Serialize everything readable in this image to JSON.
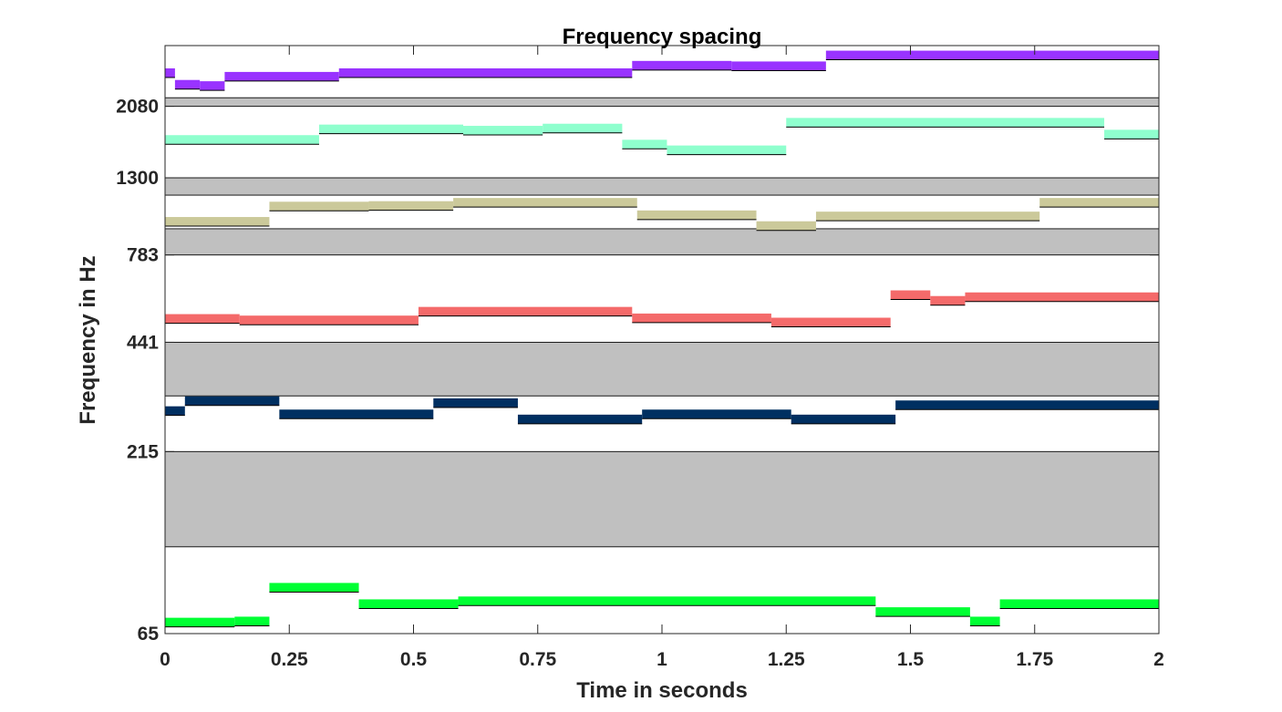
{
  "chart_data": {
    "type": "bar",
    "title": "Frequency spacing",
    "xlabel": "Time in seconds",
    "ylabel": "Frequency in Hz",
    "xlim": [
      0,
      2
    ],
    "ylim": [
      65,
      3100
    ],
    "yscale": "log",
    "grid": false,
    "x_ticks": [
      "0",
      "0.25",
      "0.5",
      "0.75",
      "1",
      "1.25",
      "1.5",
      "1.75",
      "2"
    ],
    "y_ticks": [
      {
        "value": 65,
        "label": "65"
      },
      {
        "value": 215,
        "label": "215"
      },
      {
        "value": 441,
        "label": "441"
      },
      {
        "value": 783,
        "label": "783"
      },
      {
        "value": 1300,
        "label": "1300"
      },
      {
        "value": 2080,
        "label": "2080"
      }
    ],
    "gap_bands": [
      {
        "from": 115,
        "to": 215,
        "color": "#c0c0c0"
      },
      {
        "from": 310,
        "to": 441,
        "color": "#c0c0c0"
      },
      {
        "from": 783,
        "to": 930,
        "color": "#c0c0c0"
      },
      {
        "from": 1160,
        "to": 1300,
        "color": "#c0c0c0"
      },
      {
        "from": 2080,
        "to": 2200,
        "color": "#c0c0c0"
      }
    ],
    "series": [
      {
        "color": "#00ff33",
        "notes": [
          {
            "start": 0.0,
            "end": 0.14,
            "freq": 70
          },
          {
            "start": 0.14,
            "end": 0.21,
            "freq": 70.5
          },
          {
            "start": 0.21,
            "end": 0.39,
            "freq": 88
          },
          {
            "start": 0.39,
            "end": 0.59,
            "freq": 79
          },
          {
            "start": 0.59,
            "end": 1.43,
            "freq": 80.5
          },
          {
            "start": 1.43,
            "end": 1.62,
            "freq": 75
          },
          {
            "start": 1.62,
            "end": 1.68,
            "freq": 70.5
          },
          {
            "start": 1.68,
            "end": 2.0,
            "freq": 79
          }
        ]
      },
      {
        "color": "#002f61",
        "notes": [
          {
            "start": 0.0,
            "end": 0.04,
            "freq": 281
          },
          {
            "start": 0.04,
            "end": 0.23,
            "freq": 300
          },
          {
            "start": 0.23,
            "end": 0.54,
            "freq": 275
          },
          {
            "start": 0.54,
            "end": 0.71,
            "freq": 296
          },
          {
            "start": 0.71,
            "end": 0.96,
            "freq": 266
          },
          {
            "start": 0.96,
            "end": 1.26,
            "freq": 275
          },
          {
            "start": 1.26,
            "end": 1.47,
            "freq": 266
          },
          {
            "start": 1.47,
            "end": 2.0,
            "freq": 292
          }
        ]
      },
      {
        "color": "#f46a6a",
        "notes": [
          {
            "start": 0.0,
            "end": 0.15,
            "freq": 515
          },
          {
            "start": 0.15,
            "end": 0.51,
            "freq": 510
          },
          {
            "start": 0.51,
            "end": 0.94,
            "freq": 540
          },
          {
            "start": 0.94,
            "end": 1.22,
            "freq": 517
          },
          {
            "start": 1.22,
            "end": 1.46,
            "freq": 503
          },
          {
            "start": 1.46,
            "end": 1.54,
            "freq": 602
          },
          {
            "start": 1.54,
            "end": 1.61,
            "freq": 580
          },
          {
            "start": 1.61,
            "end": 2.0,
            "freq": 594
          }
        ]
      },
      {
        "color": "#cbc99a",
        "notes": [
          {
            "start": 0.0,
            "end": 0.21,
            "freq": 975
          },
          {
            "start": 0.21,
            "end": 0.41,
            "freq": 1078
          },
          {
            "start": 0.41,
            "end": 0.58,
            "freq": 1082
          },
          {
            "start": 0.58,
            "end": 0.95,
            "freq": 1105
          },
          {
            "start": 0.95,
            "end": 1.19,
            "freq": 1018
          },
          {
            "start": 1.19,
            "end": 1.31,
            "freq": 948
          },
          {
            "start": 1.31,
            "end": 1.76,
            "freq": 1010
          },
          {
            "start": 1.76,
            "end": 2.0,
            "freq": 1105
          }
        ]
      },
      {
        "color": "#8fffce",
        "notes": [
          {
            "start": 0.0,
            "end": 0.31,
            "freq": 1670
          },
          {
            "start": 0.31,
            "end": 0.6,
            "freq": 1790
          },
          {
            "start": 0.6,
            "end": 0.76,
            "freq": 1775
          },
          {
            "start": 0.76,
            "end": 0.92,
            "freq": 1800
          },
          {
            "start": 0.92,
            "end": 1.01,
            "freq": 1620
          },
          {
            "start": 1.01,
            "end": 1.25,
            "freq": 1560
          },
          {
            "start": 1.25,
            "end": 1.89,
            "freq": 1870
          },
          {
            "start": 1.89,
            "end": 2.0,
            "freq": 1730
          }
        ]
      },
      {
        "color": "#9933ff",
        "notes": [
          {
            "start": 0.0,
            "end": 0.02,
            "freq": 2590
          },
          {
            "start": 0.02,
            "end": 0.07,
            "freq": 2400
          },
          {
            "start": 0.07,
            "end": 0.12,
            "freq": 2380
          },
          {
            "start": 0.12,
            "end": 0.35,
            "freq": 2530
          },
          {
            "start": 0.35,
            "end": 0.94,
            "freq": 2590
          },
          {
            "start": 0.94,
            "end": 1.14,
            "freq": 2720
          },
          {
            "start": 1.14,
            "end": 1.33,
            "freq": 2710
          },
          {
            "start": 1.33,
            "end": 2.0,
            "freq": 2910
          }
        ]
      }
    ]
  }
}
